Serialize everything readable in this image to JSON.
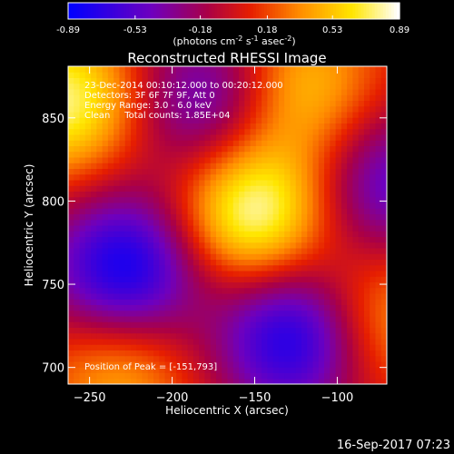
{
  "chart_data": {
    "type": "heatmap",
    "title": "Reconstructed RHESSI Image",
    "xlabel": "Heliocentric X (arcsec)",
    "ylabel": "Heliocentric Y (arcsec)",
    "xlim": [
      -263,
      -70
    ],
    "ylim": [
      690,
      881
    ],
    "x_ticks": [
      -250,
      -200,
      -150,
      -100
    ],
    "y_ticks": [
      700,
      750,
      800,
      850
    ],
    "colorbar": {
      "min": -0.89,
      "max": 0.89,
      "ticks": [
        "-0.89",
        "-0.53",
        "-0.18",
        "0.18",
        "0.53",
        "0.89"
      ],
      "unit_main": "(photons cm",
      "unit_sup1": "-2",
      "unit_mid": " s",
      "unit_sup2": "-1",
      "unit_end": " asec",
      "unit_sup3": "-2",
      "unit_close": ")"
    },
    "annotations": [
      "23-Dec-2014 00:10:12.000 to 00:20:12.000",
      "Detectors: 3F 6F 7F 9F, Att 0",
      "Energy Range: 3.0 - 6.0 keV",
      "Clean     Total counts: 1.85E+04"
    ],
    "peak_label": "Position of Peak = [-151,793]",
    "peak": [
      -151,
      793
    ],
    "blobs": [
      {
        "x": -151,
        "y": 793,
        "amp": 0.89
      },
      {
        "x": -265,
        "y": 860,
        "amp": 0.78
      },
      {
        "x": -120,
        "y": 868,
        "amp": 0.55
      },
      {
        "x": -232,
        "y": 700,
        "amp": 0.5
      },
      {
        "x": -78,
        "y": 730,
        "amp": 0.5
      },
      {
        "x": -228,
        "y": 758,
        "amp": -0.89
      },
      {
        "x": -125,
        "y": 720,
        "amp": -0.89
      },
      {
        "x": -178,
        "y": 860,
        "amp": -0.55
      },
      {
        "x": -70,
        "y": 810,
        "amp": -0.55
      }
    ]
  },
  "footer_timestamp": "16-Sep-2017 07:23"
}
